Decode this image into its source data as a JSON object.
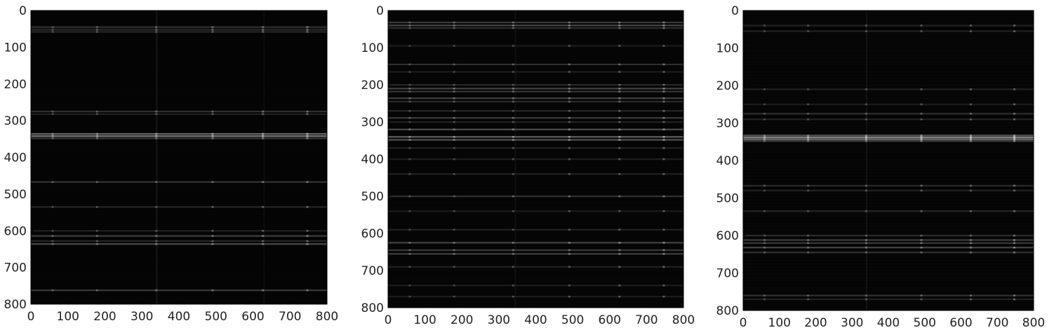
{
  "chart_data": [
    {
      "type": "heatmap",
      "colormap": "gray",
      "background_color": "#050505",
      "xlim": [
        0,
        800
      ],
      "ylim": [
        800,
        0
      ],
      "xticks": [
        "0",
        "100",
        "200",
        "300",
        "400",
        "500",
        "600",
        "700",
        "800"
      ],
      "yticks": [
        "0",
        "100",
        "200",
        "300",
        "400",
        "500",
        "600",
        "700",
        "800"
      ],
      "bright_rows": [
        {
          "y": 45,
          "intensity": 0.16
        },
        {
          "y": 52,
          "intensity": 0.14
        },
        {
          "y": 58,
          "intensity": 0.12
        },
        {
          "y": 275,
          "intensity": 0.16
        },
        {
          "y": 282,
          "intensity": 0.1
        },
        {
          "y": 336,
          "intensity": 0.38
        },
        {
          "y": 342,
          "intensity": 0.46
        },
        {
          "y": 348,
          "intensity": 0.2
        },
        {
          "y": 467,
          "intensity": 0.18
        },
        {
          "y": 535,
          "intensity": 0.12
        },
        {
          "y": 600,
          "intensity": 0.1
        },
        {
          "y": 614,
          "intensity": 0.22
        },
        {
          "y": 628,
          "intensity": 0.12
        },
        {
          "y": 636,
          "intensity": 0.26
        },
        {
          "y": 762,
          "intensity": 0.2
        }
      ],
      "bright_columns": [
        {
          "x": 340,
          "intensity": 0.1
        },
        {
          "x": 630,
          "intensity": 0.05
        }
      ]
    },
    {
      "type": "heatmap",
      "colormap": "gray",
      "background_color": "#050505",
      "xlim": [
        0,
        800
      ],
      "ylim": [
        800,
        0
      ],
      "xticks": [
        "0",
        "100",
        "200",
        "300",
        "400",
        "500",
        "600",
        "700",
        "800"
      ],
      "yticks": [
        "0",
        "100",
        "200",
        "300",
        "400",
        "500",
        "600",
        "700",
        "800"
      ],
      "bright_rows": [
        {
          "y": 32,
          "intensity": 0.2
        },
        {
          "y": 40,
          "intensity": 0.25
        },
        {
          "y": 47,
          "intensity": 0.15
        },
        {
          "y": 95,
          "intensity": 0.08
        },
        {
          "y": 145,
          "intensity": 0.15
        },
        {
          "y": 165,
          "intensity": 0.08
        },
        {
          "y": 200,
          "intensity": 0.12
        },
        {
          "y": 210,
          "intensity": 0.24
        },
        {
          "y": 218,
          "intensity": 0.18
        },
        {
          "y": 236,
          "intensity": 0.22
        },
        {
          "y": 245,
          "intensity": 0.14
        },
        {
          "y": 270,
          "intensity": 0.12
        },
        {
          "y": 289,
          "intensity": 0.2
        },
        {
          "y": 300,
          "intensity": 0.1
        },
        {
          "y": 320,
          "intensity": 0.28
        },
        {
          "y": 340,
          "intensity": 0.35
        },
        {
          "y": 348,
          "intensity": 0.3
        },
        {
          "y": 370,
          "intensity": 0.1
        },
        {
          "y": 400,
          "intensity": 0.08
        },
        {
          "y": 440,
          "intensity": 0.1
        },
        {
          "y": 500,
          "intensity": 0.16
        },
        {
          "y": 540,
          "intensity": 0.08
        },
        {
          "y": 590,
          "intensity": 0.1
        },
        {
          "y": 625,
          "intensity": 0.24
        },
        {
          "y": 645,
          "intensity": 0.2
        },
        {
          "y": 655,
          "intensity": 0.22
        },
        {
          "y": 690,
          "intensity": 0.1
        },
        {
          "y": 740,
          "intensity": 0.08
        },
        {
          "y": 770,
          "intensity": 0.08
        }
      ],
      "bright_columns": [
        {
          "x": 345,
          "intensity": 0.06
        }
      ]
    },
    {
      "type": "heatmap",
      "colormap": "gray",
      "background_color": "#050505",
      "xlim": [
        0,
        800
      ],
      "ylim": [
        800,
        0
      ],
      "xticks": [
        "0",
        "100",
        "200",
        "300",
        "400",
        "500",
        "600",
        "700",
        "800"
      ],
      "yticks": [
        "0",
        "100",
        "200",
        "300",
        "400",
        "500",
        "600",
        "700",
        "800"
      ],
      "bright_rows": [
        {
          "y": 40,
          "intensity": 0.1
        },
        {
          "y": 55,
          "intensity": 0.1
        },
        {
          "y": 210,
          "intensity": 0.1
        },
        {
          "y": 250,
          "intensity": 0.08
        },
        {
          "y": 275,
          "intensity": 0.14
        },
        {
          "y": 290,
          "intensity": 0.1
        },
        {
          "y": 333,
          "intensity": 0.3
        },
        {
          "y": 338,
          "intensity": 0.5
        },
        {
          "y": 343,
          "intensity": 0.45
        },
        {
          "y": 348,
          "intensity": 0.22
        },
        {
          "y": 467,
          "intensity": 0.14
        },
        {
          "y": 480,
          "intensity": 0.1
        },
        {
          "y": 535,
          "intensity": 0.12
        },
        {
          "y": 600,
          "intensity": 0.14
        },
        {
          "y": 612,
          "intensity": 0.22
        },
        {
          "y": 620,
          "intensity": 0.2
        },
        {
          "y": 632,
          "intensity": 0.24
        },
        {
          "y": 645,
          "intensity": 0.16
        },
        {
          "y": 760,
          "intensity": 0.16
        },
        {
          "y": 770,
          "intensity": 0.1
        }
      ],
      "bright_columns": [
        {
          "x": 340,
          "intensity": 0.08
        }
      ]
    }
  ]
}
